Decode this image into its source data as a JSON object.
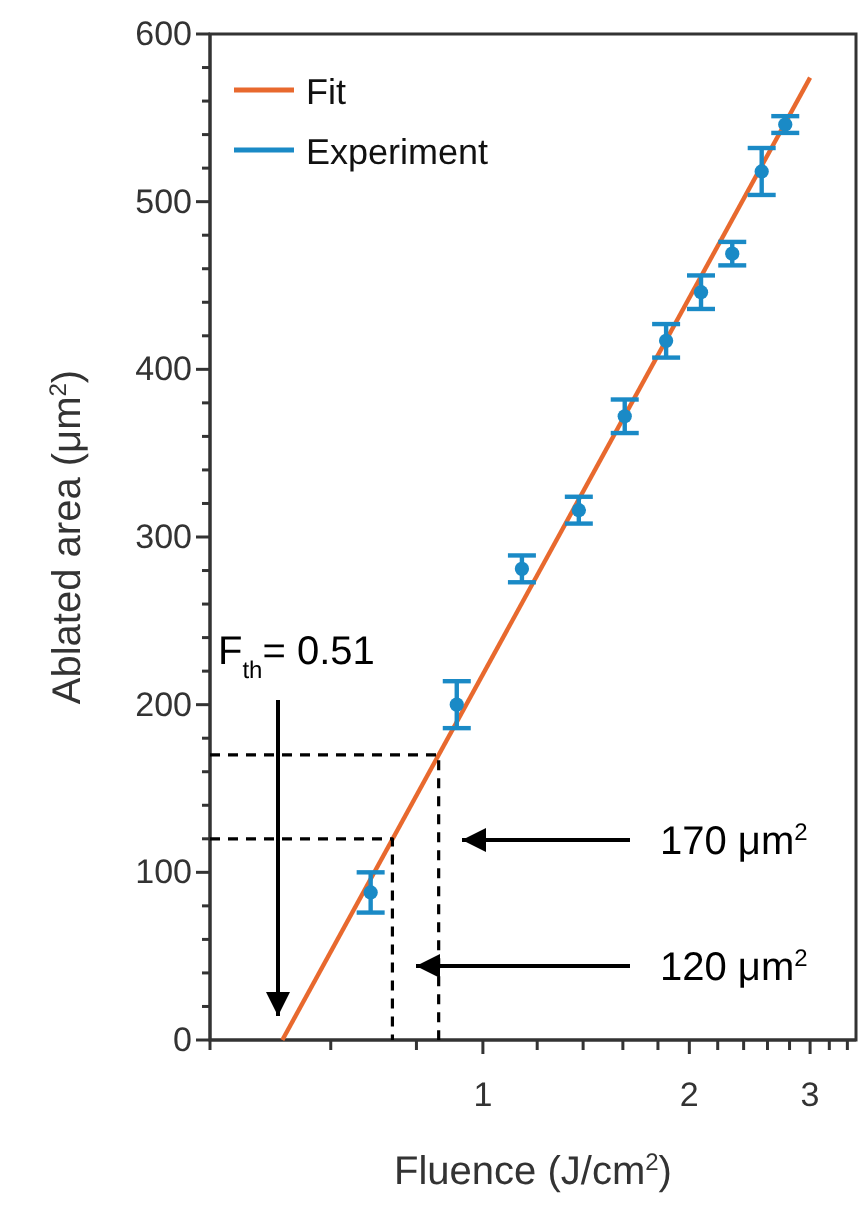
{
  "chart_data": {
    "type": "scatter",
    "xlabel": "Fluence (J/cm$^{2}$)",
    "ylabel": "Ablated area (μm$^{2}$)",
    "log": "x",
    "xlim": [
      0.4,
      3.5
    ],
    "ylim": [
      0,
      600
    ],
    "xticks": [
      {
        "value": 0.4,
        "label": null
      },
      {
        "value": 0.6,
        "label": null
      },
      {
        "value": 0.8,
        "label": null
      },
      1,
      {
        "value": 1.2,
        "label": null
      },
      {
        "value": 1.4,
        "label": null
      },
      {
        "value": 1.6,
        "label": null
      },
      {
        "value": 1.8,
        "label": null
      },
      2,
      {
        "value": 2.2,
        "label": null
      },
      {
        "value": 2.4,
        "label": null
      },
      {
        "value": 2.6,
        "label": null
      },
      {
        "value": 2.8,
        "label": null
      },
      3,
      {
        "value": 3.2,
        "label": null
      },
      {
        "value": 3.4,
        "label": null
      }
    ],
    "yticks": [
      0,
      {
        "value": 20,
        "label": null
      },
      {
        "value": 40,
        "label": null
      },
      {
        "value": 60,
        "label": null
      },
      {
        "value": 80,
        "label": null
      },
      100,
      {
        "value": 120,
        "label": null
      },
      {
        "value": 140,
        "label": null
      },
      {
        "value": 160,
        "label": null
      },
      {
        "value": 180,
        "label": null
      },
      200,
      {
        "value": 220,
        "label": null
      },
      {
        "value": 240,
        "label": null
      },
      {
        "value": 260,
        "label": null
      },
      {
        "value": 280,
        "label": null
      },
      300,
      {
        "value": 320,
        "label": null
      },
      {
        "value": 340,
        "label": null
      },
      {
        "value": 360,
        "label": null
      },
      {
        "value": 380,
        "label": null
      },
      400,
      {
        "value": 420,
        "label": null
      },
      {
        "value": 440,
        "label": null
      },
      {
        "value": 460,
        "label": null
      },
      {
        "value": 480,
        "label": null
      },
      500,
      {
        "value": 520,
        "label": null
      },
      {
        "value": 540,
        "label": null
      },
      {
        "value": 560,
        "label": null
      },
      {
        "value": 580,
        "label": null
      },
      600
    ],
    "grid": false,
    "legend": "top left",
    "series": [
      {
        "name": "Fit",
        "type": "line",
        "color": "#e8692e",
        "x": [
          0.51,
          3.0
        ],
        "values": [
          0,
          574
        ],
        "line_style": "solid",
        "marker": "none"
      },
      {
        "name": "Experiment",
        "color": "#1a8ac6",
        "marker": "circle",
        "x": [
          0.686,
          0.916,
          1.14,
          1.38,
          1.61,
          1.85,
          2.08,
          2.31,
          2.55,
          2.76
        ],
        "values": [
          88,
          200,
          281,
          316,
          372,
          417,
          446,
          469,
          518,
          546
        ],
        "errors": [
          12,
          14,
          8,
          8,
          10,
          10,
          10,
          7,
          14,
          5
        ]
      },
      {
        "type": "line",
        "color": "#000000",
        "line_style": "dashed",
        "marker": "none",
        "x": [
          0.4,
          0.862,
          0.862
        ],
        "values": [
          170,
          170,
          0
        ]
      },
      {
        "type": "line",
        "color": "#000000",
        "line_style": "dashed",
        "marker": "none",
        "x": [
          0.4,
          0.738,
          0.738
        ],
        "values": [
          120,
          120,
          0
        ]
      }
    ],
    "annotations": [
      "F$_{th}$= 0.51",
      "170 μm$^{2}$",
      "120 μm$^{2}$"
    ]
  }
}
